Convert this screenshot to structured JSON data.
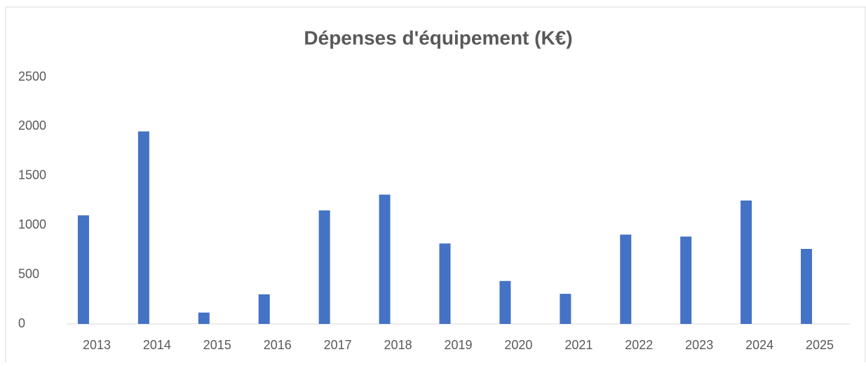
{
  "chart_data": {
    "type": "bar",
    "title": "Dépenses d'équipement (K€)",
    "categories": [
      "2013",
      "2014",
      "2015",
      "2016",
      "2017",
      "2018",
      "2019",
      "2020",
      "2021",
      "2022",
      "2023",
      "2024",
      "2025"
    ],
    "values": [
      1100,
      1950,
      115,
      300,
      1150,
      1310,
      815,
      435,
      305,
      905,
      885,
      1250,
      760
    ],
    "color": "#4472c4",
    "ylim": [
      0,
      2500
    ],
    "yticks": [
      0,
      500,
      1000,
      1500,
      2000,
      2500
    ],
    "grid": false
  }
}
